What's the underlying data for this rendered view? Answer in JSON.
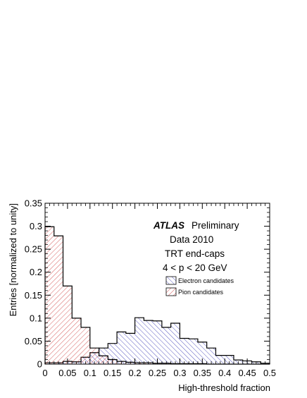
{
  "chart_data": {
    "type": "histogram",
    "xlabel": "High-threshold fraction",
    "ylabel": "Entries [normalized to unity]",
    "xlim": [
      0,
      0.5
    ],
    "ylim": [
      0,
      0.35
    ],
    "xticks": [
      "0",
      "0.05",
      "0.1",
      "0.15",
      "0.2",
      "0.25",
      "0.3",
      "0.35",
      "0.4",
      "0.45",
      "0.5"
    ],
    "yticks": [
      "0",
      "0.05",
      "0.1",
      "0.15",
      "0.2",
      "0.25",
      "0.3",
      "0.35"
    ],
    "bin_edges": [
      0,
      0.02,
      0.04,
      0.06,
      0.08,
      0.1,
      0.12,
      0.14,
      0.16,
      0.18,
      0.2,
      0.22,
      0.24,
      0.26,
      0.28,
      0.3,
      0.32,
      0.34,
      0.36,
      0.38,
      0.4,
      0.42,
      0.44,
      0.46,
      0.48,
      0.5
    ],
    "series": [
      {
        "name": "Electron candidates",
        "color": "#2b2bb0",
        "hatch": "backslash",
        "values": [
          0.003,
          0.003,
          0.006,
          0.005,
          0.015,
          0.025,
          0.035,
          0.045,
          0.07,
          0.067,
          0.101,
          0.095,
          0.094,
          0.08,
          0.089,
          0.056,
          0.055,
          0.048,
          0.035,
          0.019,
          0.019,
          0.009,
          0.007,
          0.005,
          0.002
        ]
      },
      {
        "name": "Pion candidates",
        "color": "#cc3333",
        "hatch": "slash",
        "values": [
          0.299,
          0.279,
          0.17,
          0.1,
          0.08,
          0.035,
          0.018,
          0.01,
          0.006,
          0.004,
          0.003,
          0.003,
          0.002,
          0.002,
          0.001,
          0.001,
          0.001,
          0.001,
          0.0,
          0.0,
          0.0,
          0.0,
          0.0,
          0.0,
          0.0
        ]
      }
    ],
    "annotations": {
      "atlas": "ATLAS",
      "status": "Preliminary",
      "dataset": "Data 2010",
      "region": "TRT end-caps",
      "momentum": "4 < p < 20 GeV"
    },
    "legend_position": "upper-right"
  }
}
